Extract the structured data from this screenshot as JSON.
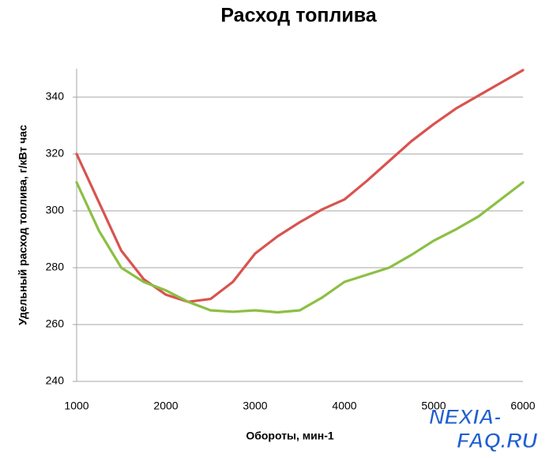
{
  "chart_data": {
    "type": "line",
    "title": "Расход топлива",
    "x_label": "Обороты, мин-1",
    "y_label": "Удельный расход топлива, г/кВт час",
    "x": [
      1000,
      1250,
      1500,
      1750,
      2000,
      2250,
      2500,
      2750,
      3000,
      3250,
      3500,
      3750,
      4000,
      4250,
      4500,
      4750,
      5000,
      5250,
      5500,
      5750,
      6000
    ],
    "series": [
      {
        "color": "#d9534f",
        "values": [
          320,
          303,
          286,
          276,
          270.5,
          268,
          269,
          275,
          285,
          291,
          296,
          300.5,
          304,
          310.5,
          317.5,
          324.5,
          330.5,
          336,
          340.5,
          345,
          349.5
        ]
      },
      {
        "color": "#8cbf44",
        "values": [
          310,
          293,
          280,
          275,
          272,
          268,
          265,
          264.5,
          265,
          264.3,
          265,
          269.5,
          275,
          277.5,
          280,
          284.5,
          289.5,
          293.5,
          298,
          304,
          310
        ]
      }
    ],
    "xlim": [
      1000,
      6000
    ],
    "xticks": [
      1000,
      2000,
      3000,
      4000,
      5000,
      6000
    ],
    "ylim": [
      240,
      350
    ],
    "yticks": [
      240,
      260,
      280,
      300,
      320,
      340
    ],
    "grid": true
  },
  "watermark": {
    "line1": "NEXIA-",
    "line2": "FAQ.RU"
  }
}
